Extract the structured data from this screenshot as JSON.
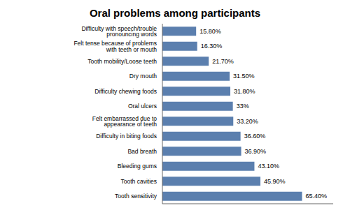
{
  "chart_data": {
    "type": "bar",
    "title": "Oral problems among participants",
    "orientation": "horizontal",
    "categories": [
      "Difficulty with speech/trouble pronouncing words",
      "Felt tense because of problems with teeth or mouth",
      "Tooth mobility/Loose teeth",
      "Dry mouth",
      "Difficulty chewing foods",
      "Oral ulcers",
      "Felt embarrassed due to appearance of teeth",
      "Difficulty in biting foods",
      "Bad breath",
      "Bleeding gums",
      "Tooth cavities",
      "Tooth sensitivity"
    ],
    "values": [
      15.8,
      16.3,
      21.7,
      31.5,
      31.8,
      33.0,
      33.2,
      36.6,
      36.9,
      43.1,
      45.9,
      65.4
    ],
    "value_labels": [
      "15.80%",
      "16.30%",
      "21.70%",
      "31.50%",
      "31.80%",
      "33%",
      "33.20%",
      "36.60%",
      "36.90%",
      "43.10%",
      "45.90%",
      "65.40%"
    ],
    "data_labels": true,
    "color": "#5b7fae",
    "xlim": [
      0,
      80
    ],
    "tick_labels": "y",
    "grid": false
  }
}
